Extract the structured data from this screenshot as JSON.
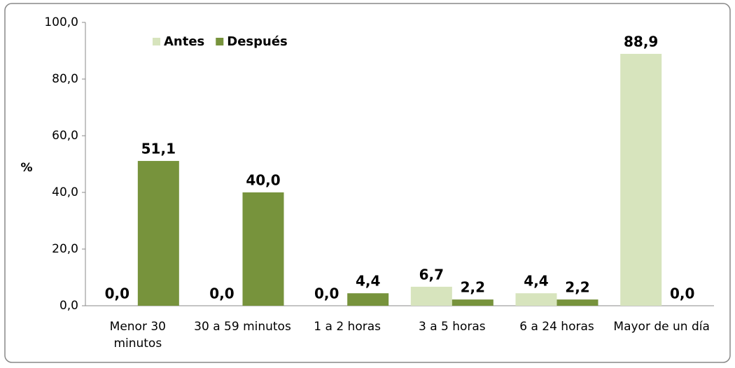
{
  "chart_data": {
    "type": "bar",
    "y_label": "%",
    "categories": [
      "Menor 30 minutos",
      "30 a 59 minutos",
      "1 a 2 horas",
      "3 a 5 horas",
      "6 a 24 horas",
      "Mayor de un día"
    ],
    "series": [
      {
        "name": "Antes",
        "color": "#d7e4bd",
        "values": [
          0,
          0,
          0,
          6.7,
          4.4,
          88.9
        ],
        "value_labels": [
          "0,0",
          "0,0",
          "0,0",
          "6,7",
          "4,4",
          "88,9"
        ]
      },
      {
        "name": "Después",
        "color": "#77933c",
        "values": [
          51.1,
          40,
          4.4,
          2.2,
          2.2,
          0
        ],
        "value_labels": [
          "51,1",
          "40,0",
          "4,4",
          "2,2",
          "2,2",
          "0,0"
        ]
      }
    ],
    "ylim": [
      0,
      100
    ],
    "yticks": [
      {
        "value": 0,
        "label": "0,0"
      },
      {
        "value": 20,
        "label": "20,0"
      },
      {
        "value": 40,
        "label": "40,0"
      },
      {
        "value": 60,
        "label": "60,0"
      },
      {
        "value": 80,
        "label": "80,0"
      },
      {
        "value": 100,
        "label": "100,0"
      }
    ],
    "legend": "top-left"
  }
}
